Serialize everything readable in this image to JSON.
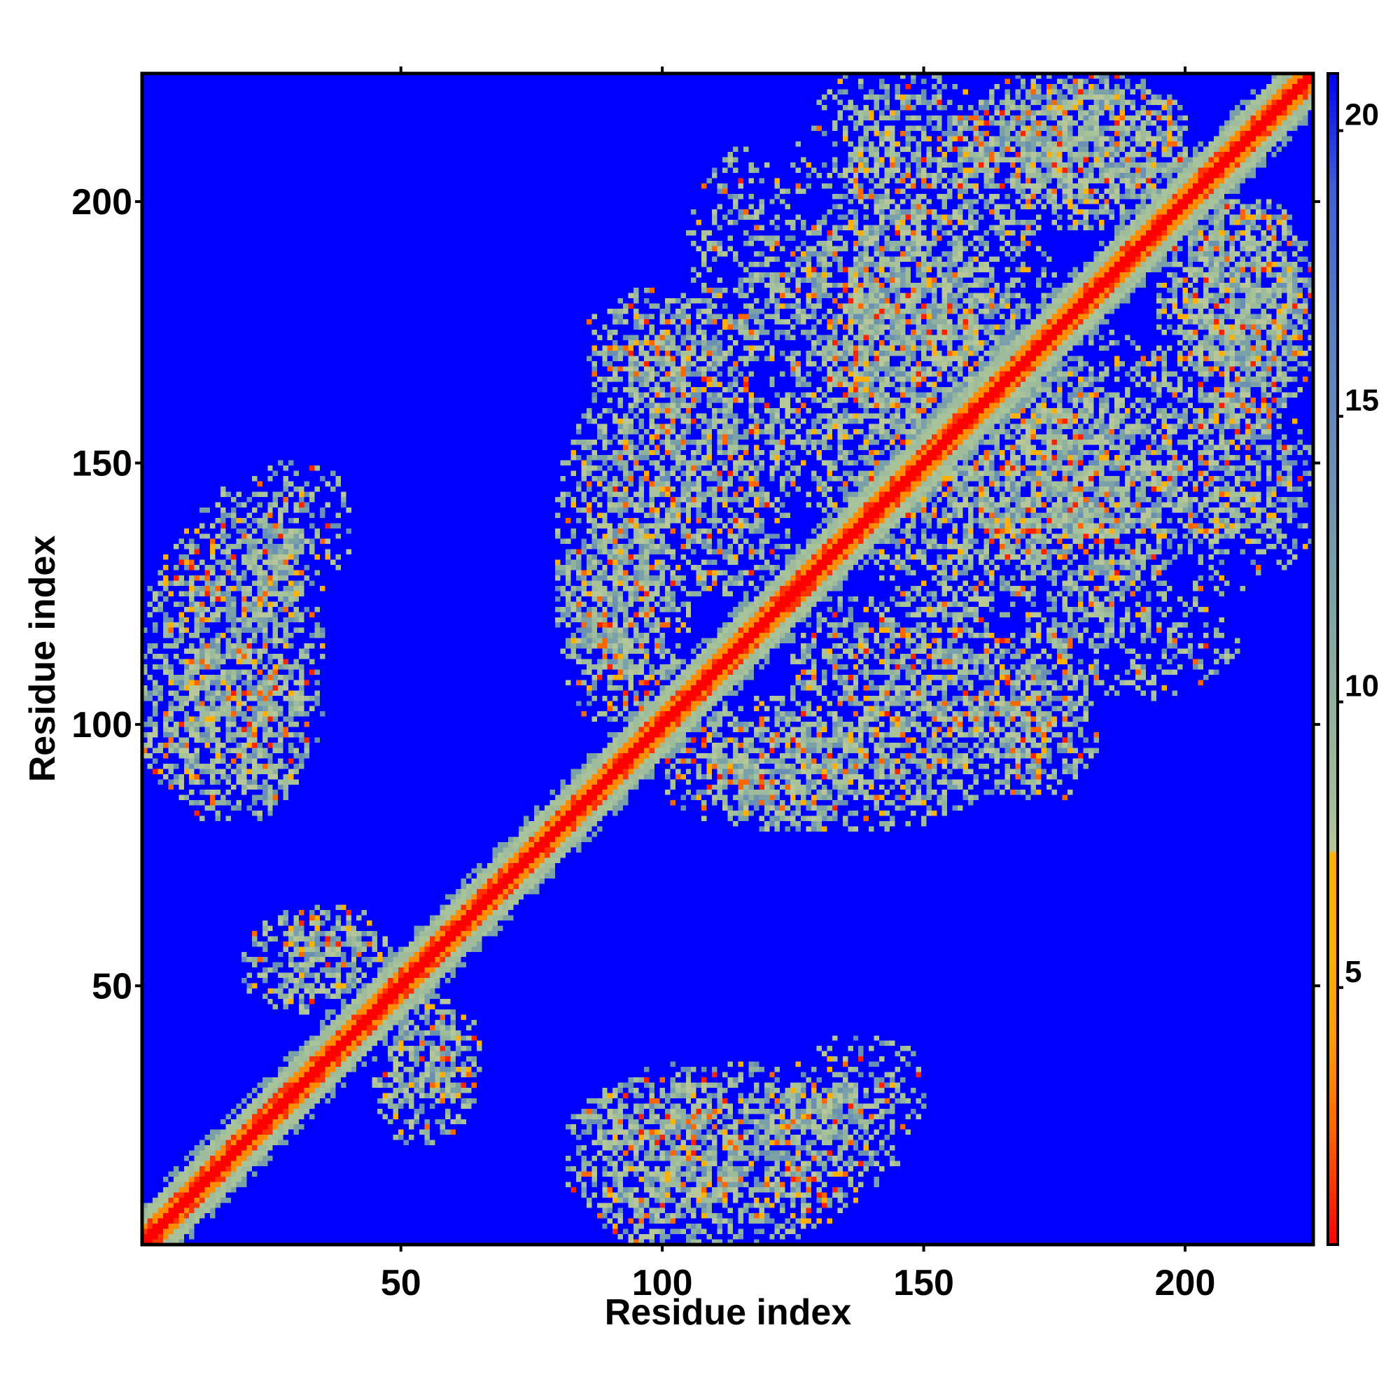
{
  "chart_data": {
    "type": "heatmap",
    "title": "",
    "xlabel": "Residue index",
    "ylabel": "Residue index",
    "xlim": [
      1,
      224
    ],
    "ylim": [
      1,
      224
    ],
    "x_ticks": [
      50,
      100,
      150,
      200
    ],
    "y_ticks": [
      50,
      100,
      150,
      200
    ],
    "colorbar": {
      "ticks": [
        5,
        10,
        15,
        20
      ],
      "range": [
        0.5,
        21
      ],
      "colors": [
        "#ff0000",
        "#ff3300",
        "#ff6600",
        "#ff9900",
        "#ffb000",
        "#b7c79a",
        "#a4bd9a",
        "#8fb19e",
        "#7aa1a8",
        "#6a90b4",
        "#5a7fc0",
        "#3f5fd4",
        "#0000ff"
      ]
    },
    "background_color": "#0000ff",
    "diagonal_band": {
      "from": 1,
      "to": 224,
      "core_halfwidth_residues": 1.5,
      "inner_halfwidth_residues": 3,
      "outer_halfwidth_residues": 6,
      "core_color": "#ff0000",
      "inner_color": "#ff8c00",
      "outer_color": "#a8c29a"
    },
    "contact_regions": [
      {
        "x": [
          1,
          35
        ],
        "y": [
          82,
          140
        ],
        "density": 0.45
      },
      {
        "x": [
          20,
          40
        ],
        "y": [
          125,
          150
        ],
        "density": 0.35
      },
      {
        "x": [
          22,
          45
        ],
        "y": [
          48,
          63
        ],
        "density": 0.45
      },
      {
        "x": [
          45,
          65
        ],
        "y": [
          20,
          48
        ],
        "density": 0.4
      },
      {
        "x": [
          85,
          115
        ],
        "y": [
          1,
          32
        ],
        "density": 0.55
      },
      {
        "x": [
          112,
          145
        ],
        "y": [
          10,
          30
        ],
        "density": 0.45
      },
      {
        "x": [
          80,
          100
        ],
        "y": [
          110,
          160
        ],
        "density": 0.55
      },
      {
        "x": [
          85,
          120
        ],
        "y": [
          160,
          183
        ],
        "density": 0.5
      },
      {
        "x": [
          100,
          138
        ],
        "y": [
          80,
          105
        ],
        "density": 0.55
      },
      {
        "x": [
          125,
          165
        ],
        "y": [
          95,
          125
        ],
        "density": 0.55
      },
      {
        "x": [
          140,
          175
        ],
        "y": [
          120,
          160
        ],
        "density": 0.5
      },
      {
        "x": [
          155,
          192
        ],
        "y": [
          135,
          165
        ],
        "density": 0.5
      },
      {
        "x": [
          165,
          200
        ],
        "y": [
          140,
          175
        ],
        "density": 0.45
      },
      {
        "x": [
          115,
          160
        ],
        "y": [
          165,
          195
        ],
        "density": 0.5
      },
      {
        "x": [
          135,
          165
        ],
        "y": [
          195,
          224
        ],
        "density": 0.45
      },
      {
        "x": [
          160,
          200
        ],
        "y": [
          200,
          224
        ],
        "density": 0.55
      },
      {
        "x": [
          195,
          224
        ],
        "y": [
          155,
          200
        ],
        "density": 0.55
      },
      {
        "x": [
          170,
          224
        ],
        "y": [
          125,
          150
        ],
        "density": 0.35
      },
      {
        "x": [
          175,
          210
        ],
        "y": [
          105,
          125
        ],
        "density": 0.3
      },
      {
        "x": [
          150,
          175
        ],
        "y": [
          85,
          115
        ],
        "density": 0.35
      }
    ]
  }
}
